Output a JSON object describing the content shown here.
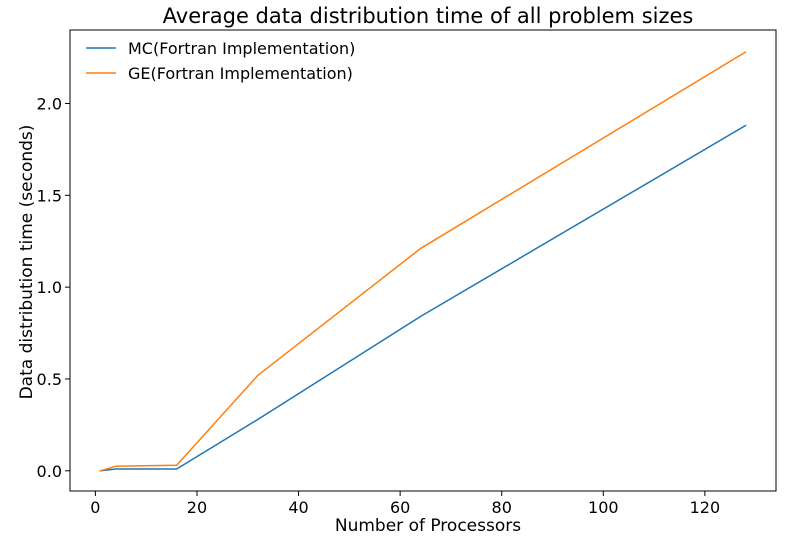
{
  "chart_data": {
    "type": "line",
    "title": "Average data distribution time of all problem sizes",
    "xlabel": "Number of Processors",
    "ylabel": "Data distribution time (seconds)",
    "xlim": [
      -5,
      134
    ],
    "ylim": [
      -0.11,
      2.4
    ],
    "xticks": [
      0,
      20,
      40,
      60,
      80,
      100,
      120
    ],
    "yticks": [
      0.0,
      0.5,
      1.0,
      1.5,
      2.0
    ],
    "xtick_labels": [
      "0",
      "20",
      "40",
      "60",
      "80",
      "100",
      "120"
    ],
    "ytick_labels": [
      "0.0",
      "0.5",
      "1.0",
      "1.5",
      "2.0"
    ],
    "grid": false,
    "legend_position": "top-left",
    "series": [
      {
        "name": "MC(Fortran Implementation)",
        "color": "#1f77b4",
        "x": [
          1,
          4,
          16,
          32,
          64,
          128
        ],
        "y": [
          0.0,
          0.01,
          0.01,
          0.28,
          0.84,
          1.88
        ]
      },
      {
        "name": "GE(Fortran Implementation)",
        "color": "#ff7f0e",
        "x": [
          1,
          4,
          16,
          32,
          64,
          128
        ],
        "y": [
          0.0,
          0.025,
          0.03,
          0.52,
          1.21,
          2.28
        ]
      }
    ]
  }
}
